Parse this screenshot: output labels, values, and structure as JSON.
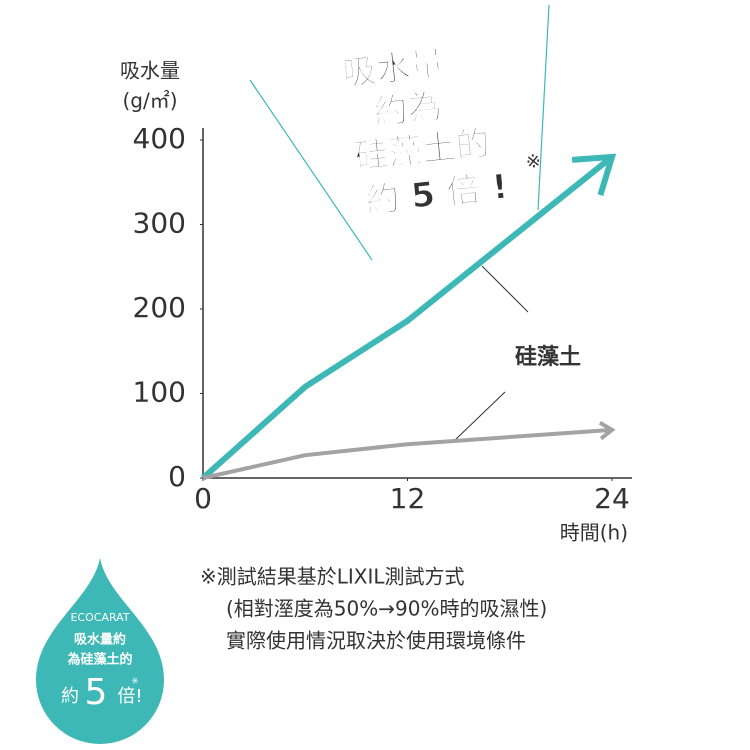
{
  "chart_data": {
    "type": "line",
    "y_axis_label": [
      "吸水量",
      "(g/㎡)"
    ],
    "x_axis_label": "時間(h)",
    "x": [
      0,
      6,
      12,
      24
    ],
    "xlim": [
      0,
      24
    ],
    "xticks": [
      0,
      12,
      24
    ],
    "ylim": [
      0,
      400
    ],
    "yticks": [
      0,
      100,
      200,
      300,
      400
    ],
    "series": [
      {
        "color": "#3db8b6",
        "values": [
          0,
          108,
          186,
          380
        ]
      },
      {
        "name": "硅藻土",
        "color": "#a3a3a3",
        "values": [
          0,
          27,
          40,
          57
        ]
      }
    ],
    "annotations": {
      "headline": [
        "吸水量",
        "約為",
        "硅藻土的",
        "約 5 倍 !"
      ],
      "headline_mark": "※"
    }
  },
  "footnote": [
    "※測試結果基於LIXIL測試方式",
    "(相對溼度為50%→90%時的吸濕性)",
    "實際使用情況取決於使用環境條件"
  ],
  "badge": {
    "brand": "ECOCARAT",
    "lines": [
      "吸水量約",
      "為硅藻土的"
    ],
    "prefix": "約",
    "number": "5",
    "suffix": "倍!",
    "mark": "※"
  }
}
